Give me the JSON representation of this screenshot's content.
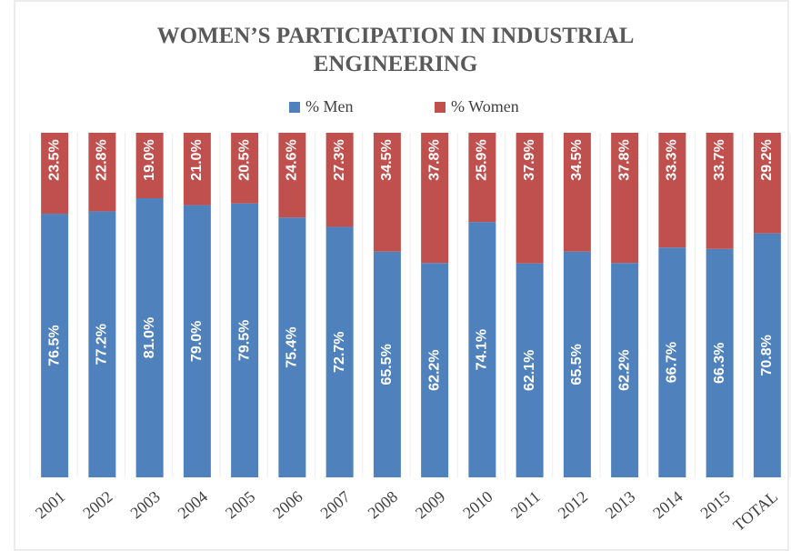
{
  "chart_data": {
    "type": "stacked_bar",
    "title": "WOMEN’S PARTICIPATION IN INDUSTRIAL ENGINEERING",
    "categories": [
      "2001",
      "2002",
      "2003",
      "2004",
      "2005",
      "2006",
      "2007",
      "2008",
      "2009",
      "2010",
      "2011",
      "2012",
      "2013",
      "2014",
      "2015",
      "TOTAL"
    ],
    "series": [
      {
        "name": "% Men",
        "color": "#4f81bd",
        "values": [
          76.5,
          77.2,
          81.0,
          79.0,
          79.5,
          75.4,
          72.7,
          65.5,
          62.2,
          74.1,
          62.1,
          65.5,
          62.2,
          66.7,
          66.3,
          70.8
        ],
        "value_labels": [
          "76.5%",
          "77.2%",
          "81.0%",
          "79.0%",
          "79.5%",
          "75.4%",
          "72.7%",
          "65.5%",
          "62.2%",
          "74.1%",
          "62.1%",
          "65.5%",
          "62.2%",
          "66.7%",
          "66.3%",
          "70.8%"
        ]
      },
      {
        "name": "% Women",
        "color": "#c0504d",
        "values": [
          23.5,
          22.8,
          19.0,
          21.0,
          20.5,
          24.6,
          27.3,
          34.5,
          37.8,
          25.9,
          37.9,
          34.5,
          37.8,
          33.3,
          33.7,
          29.2
        ],
        "value_labels": [
          "23.5%",
          "22.8%",
          "19.0%",
          "21.0%",
          "20.5%",
          "24.6%",
          "27.3%",
          "34.5%",
          "37.8%",
          "25.9%",
          "37.9%",
          "34.5%",
          "37.8%",
          "33.3%",
          "33.7%",
          "29.2%"
        ]
      }
    ],
    "ylim": [
      0,
      100
    ],
    "legend": "top"
  }
}
